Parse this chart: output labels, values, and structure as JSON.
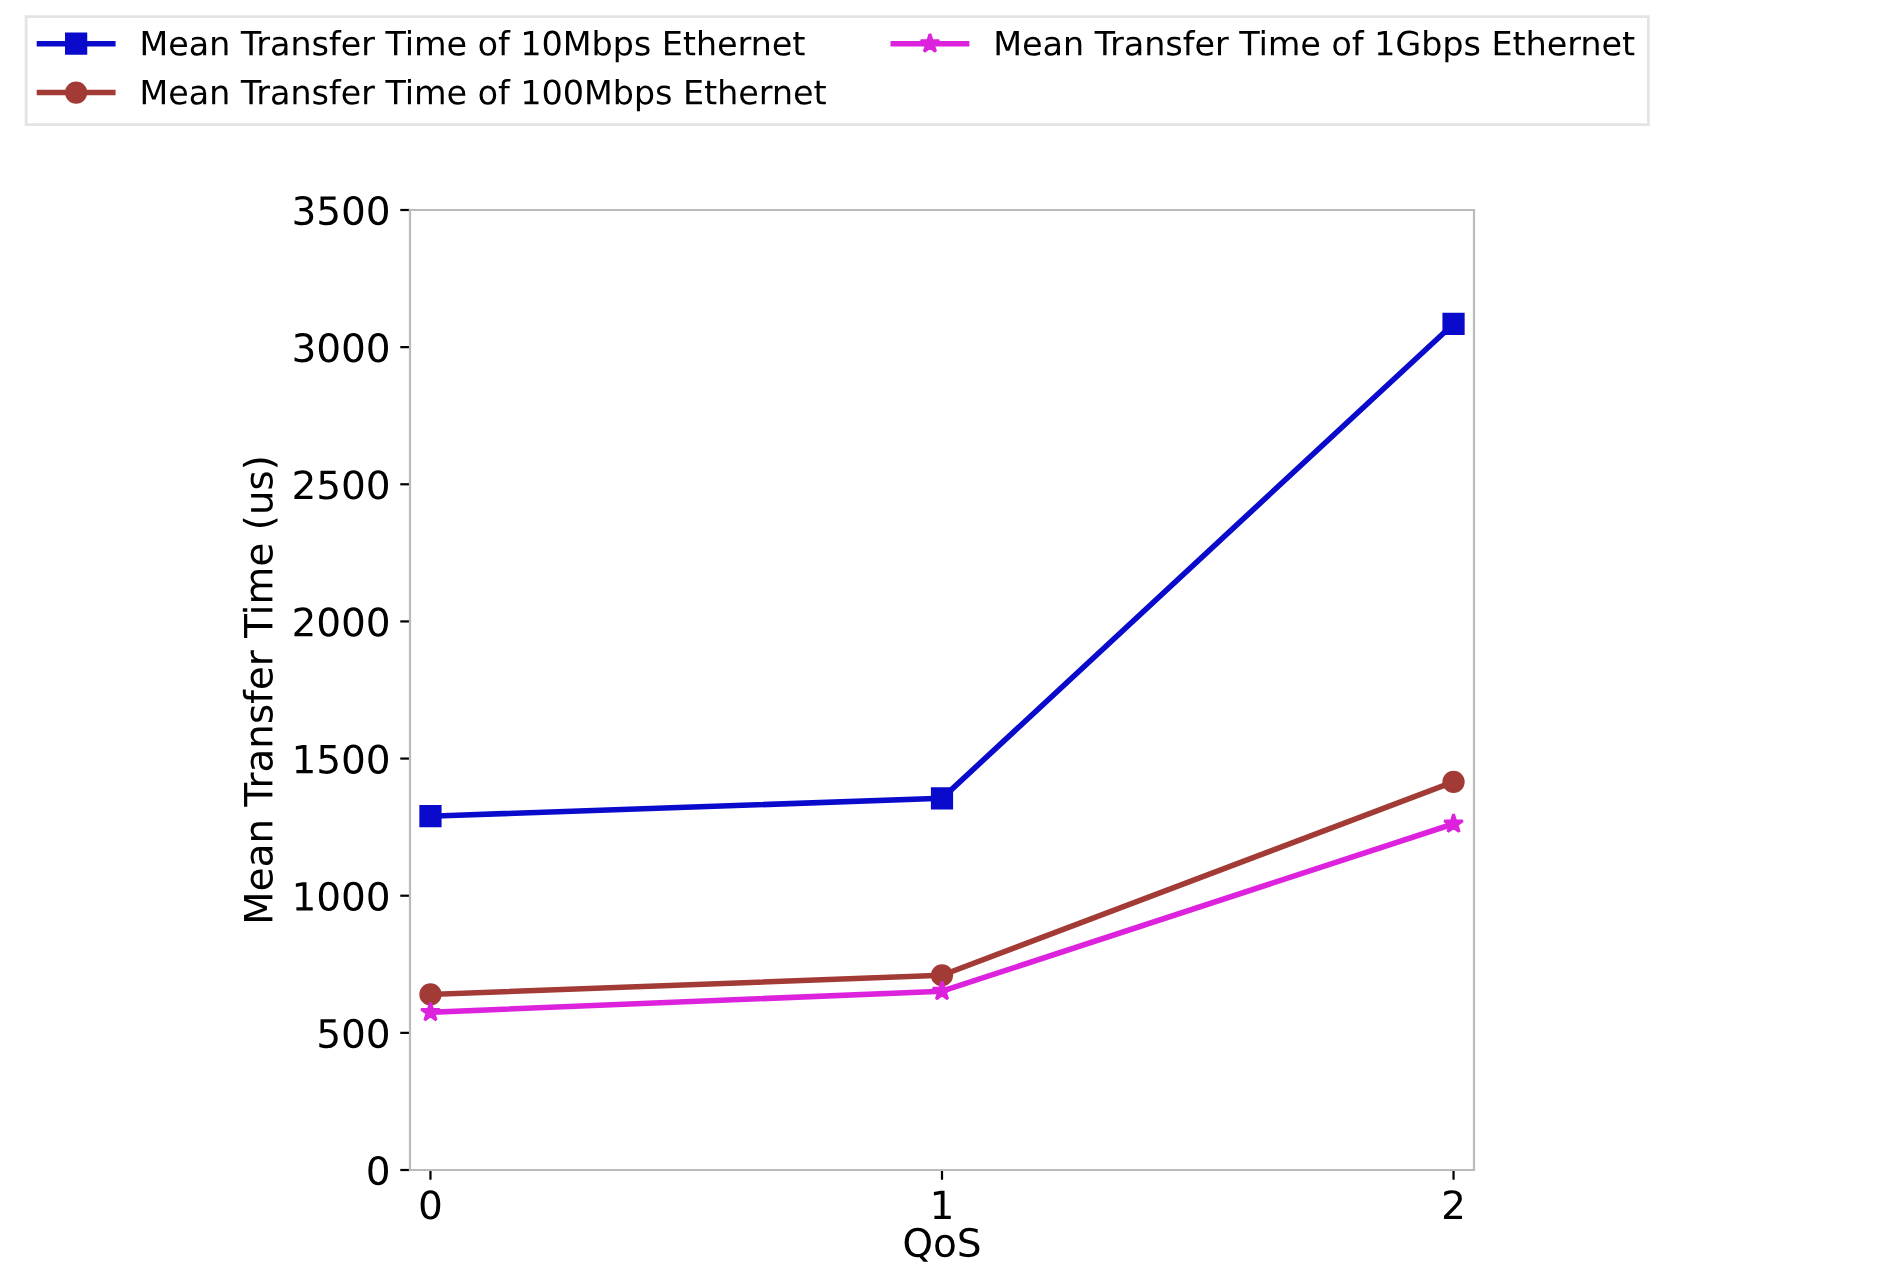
{
  "chart_data": {
    "type": "line",
    "xlabel": "QoS",
    "ylabel": "Mean Transfer Time (us)",
    "x": [
      0,
      1,
      2
    ],
    "xlim": [
      -0.04,
      2.04
    ],
    "xticks": [
      0,
      1,
      2
    ],
    "ylim": [
      0,
      3500
    ],
    "yticks": [
      0,
      500,
      1000,
      1500,
      2000,
      2500,
      3000,
      3500
    ],
    "legend": "top",
    "grid": false,
    "line_style": "solid",
    "series": [
      {
        "name": "Mean Transfer Time of 10Mbps Ethernet",
        "color": "#0a0acc",
        "marker": "square",
        "values": [
          1290,
          1355,
          3085
        ]
      },
      {
        "name": "Mean Transfer Time of 100Mbps Ethernet",
        "color": "#a23a35",
        "marker": "circle",
        "values": [
          640,
          710,
          1415
        ]
      },
      {
        "name": "Mean Transfer Time of 1Gbps Ethernet",
        "color": "#dd22dd",
        "marker": "star",
        "values": [
          575,
          652,
          1262
        ]
      }
    ]
  }
}
